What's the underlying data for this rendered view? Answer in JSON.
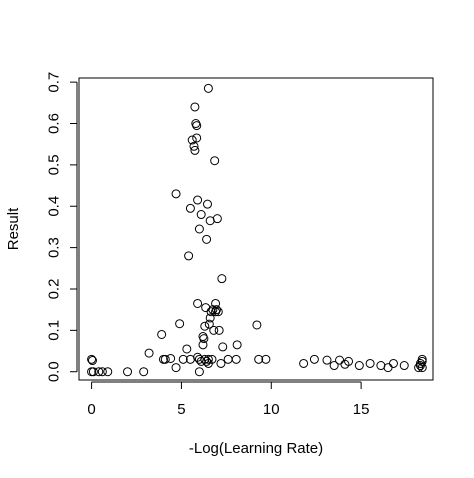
{
  "chart_data": {
    "type": "scatter",
    "title": "",
    "xlabel": "-Log(Learning Rate)",
    "ylabel": "Result",
    "xlim": [
      -0.7,
      19.0
    ],
    "ylim": [
      -0.02,
      0.71
    ],
    "xticks": [
      0,
      5,
      10,
      15
    ],
    "xtick_labels": [
      "0",
      "5",
      "10",
      "15"
    ],
    "yticks": [
      0.0,
      0.1,
      0.2,
      0.3,
      0.4,
      0.5,
      0.6,
      0.7
    ],
    "ytick_labels": [
      "0.0",
      "0.1",
      "0.2",
      "0.3",
      "0.4",
      "0.5",
      "0.6",
      "0.7"
    ],
    "grid": false,
    "legend": "none",
    "points": [
      {
        "x": 0.0,
        "y": 0.03
      },
      {
        "x": 0.05,
        "y": 0.027
      },
      {
        "x": 0.0,
        "y": 0.0
      },
      {
        "x": 0.1,
        "y": 0.0
      },
      {
        "x": 0.4,
        "y": 0.0
      },
      {
        "x": 0.6,
        "y": 0.0
      },
      {
        "x": 0.9,
        "y": 0.0
      },
      {
        "x": 2.0,
        "y": 0.0
      },
      {
        "x": 2.9,
        "y": 0.0
      },
      {
        "x": 3.2,
        "y": 0.045
      },
      {
        "x": 3.9,
        "y": 0.09
      },
      {
        "x": 4.0,
        "y": 0.03
      },
      {
        "x": 4.1,
        "y": 0.03
      },
      {
        "x": 4.4,
        "y": 0.032
      },
      {
        "x": 4.7,
        "y": 0.43
      },
      {
        "x": 4.7,
        "y": 0.01
      },
      {
        "x": 4.9,
        "y": 0.116
      },
      {
        "x": 5.1,
        "y": 0.03
      },
      {
        "x": 5.3,
        "y": 0.055
      },
      {
        "x": 5.4,
        "y": 0.28
      },
      {
        "x": 5.5,
        "y": 0.395
      },
      {
        "x": 5.5,
        "y": 0.03
      },
      {
        "x": 5.6,
        "y": 0.56
      },
      {
        "x": 5.7,
        "y": 0.545
      },
      {
        "x": 5.75,
        "y": 0.535
      },
      {
        "x": 5.75,
        "y": 0.64
      },
      {
        "x": 5.8,
        "y": 0.6
      },
      {
        "x": 5.85,
        "y": 0.595
      },
      {
        "x": 5.85,
        "y": 0.565
      },
      {
        "x": 5.9,
        "y": 0.165
      },
      {
        "x": 5.9,
        "y": 0.415
      },
      {
        "x": 5.9,
        "y": 0.035
      },
      {
        "x": 6.0,
        "y": 0.0
      },
      {
        "x": 6.0,
        "y": 0.03
      },
      {
        "x": 6.0,
        "y": 0.345
      },
      {
        "x": 6.1,
        "y": 0.38
      },
      {
        "x": 6.1,
        "y": 0.025
      },
      {
        "x": 6.2,
        "y": 0.085
      },
      {
        "x": 6.2,
        "y": 0.065
      },
      {
        "x": 6.25,
        "y": 0.08
      },
      {
        "x": 6.3,
        "y": 0.03
      },
      {
        "x": 6.3,
        "y": 0.11
      },
      {
        "x": 6.35,
        "y": 0.155
      },
      {
        "x": 6.4,
        "y": 0.025
      },
      {
        "x": 6.4,
        "y": 0.32
      },
      {
        "x": 6.45,
        "y": 0.405
      },
      {
        "x": 6.5,
        "y": 0.685
      },
      {
        "x": 6.5,
        "y": 0.02
      },
      {
        "x": 6.5,
        "y": 0.03
      },
      {
        "x": 6.55,
        "y": 0.115
      },
      {
        "x": 6.6,
        "y": 0.13
      },
      {
        "x": 6.6,
        "y": 0.365
      },
      {
        "x": 6.65,
        "y": 0.145
      },
      {
        "x": 6.7,
        "y": 0.03
      },
      {
        "x": 6.75,
        "y": 0.15
      },
      {
        "x": 6.8,
        "y": 0.1
      },
      {
        "x": 6.85,
        "y": 0.51
      },
      {
        "x": 6.9,
        "y": 0.165
      },
      {
        "x": 6.9,
        "y": 0.145
      },
      {
        "x": 6.95,
        "y": 0.15
      },
      {
        "x": 7.0,
        "y": 0.37
      },
      {
        "x": 7.05,
        "y": 0.145
      },
      {
        "x": 7.1,
        "y": 0.1
      },
      {
        "x": 7.2,
        "y": 0.02
      },
      {
        "x": 7.25,
        "y": 0.225
      },
      {
        "x": 7.3,
        "y": 0.06
      },
      {
        "x": 7.6,
        "y": 0.03
      },
      {
        "x": 8.1,
        "y": 0.065
      },
      {
        "x": 8.05,
        "y": 0.03
      },
      {
        "x": 9.2,
        "y": 0.113
      },
      {
        "x": 9.3,
        "y": 0.03
      },
      {
        "x": 9.7,
        "y": 0.03
      },
      {
        "x": 11.8,
        "y": 0.02
      },
      {
        "x": 12.4,
        "y": 0.03
      },
      {
        "x": 13.1,
        "y": 0.028
      },
      {
        "x": 13.5,
        "y": 0.015
      },
      {
        "x": 13.8,
        "y": 0.028
      },
      {
        "x": 14.1,
        "y": 0.018
      },
      {
        "x": 14.3,
        "y": 0.025
      },
      {
        "x": 14.9,
        "y": 0.015
      },
      {
        "x": 15.5,
        "y": 0.02
      },
      {
        "x": 16.1,
        "y": 0.015
      },
      {
        "x": 16.5,
        "y": 0.01
      },
      {
        "x": 16.8,
        "y": 0.02
      },
      {
        "x": 17.4,
        "y": 0.015
      },
      {
        "x": 18.2,
        "y": 0.01
      },
      {
        "x": 18.3,
        "y": 0.015
      },
      {
        "x": 18.3,
        "y": 0.02
      },
      {
        "x": 18.4,
        "y": 0.025
      },
      {
        "x": 18.4,
        "y": 0.03
      },
      {
        "x": 18.4,
        "y": 0.01
      }
    ]
  }
}
